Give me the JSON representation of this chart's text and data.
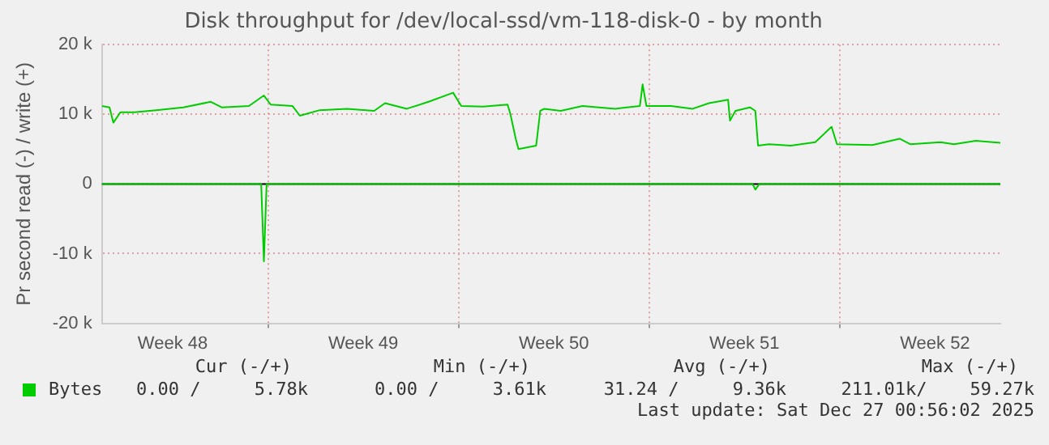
{
  "chart_data": {
    "type": "line",
    "title": "Disk throughput for /dev/local-ssd/vm-118-disk-0 - by month",
    "ylabel": "Pr second read (-) / write (+)",
    "xlim": [
      "2025-11-24T21:36",
      "2025-12-27T21:36"
    ],
    "xticks": [
      {
        "value": "2025-11-27T12:00",
        "label": "Week 48"
      },
      {
        "value": "2025-12-01T00:00",
        "label": null
      },
      {
        "value": "2025-12-04T12:00",
        "label": "Week 49"
      },
      {
        "value": "2025-12-08T00:00",
        "label": null
      },
      {
        "value": "2025-12-11T12:00",
        "label": "Week 50"
      },
      {
        "value": "2025-12-15T00:00",
        "label": null
      },
      {
        "value": "2025-12-18T12:00",
        "label": "Week 51"
      },
      {
        "value": "2025-12-22T00:00",
        "label": null
      },
      {
        "value": "2025-12-25T12:00",
        "label": "Week 52"
      }
    ],
    "ylim": [
      -20000,
      20000
    ],
    "yticks": [
      {
        "value": -20000,
        "label": "-20 k"
      },
      {
        "value": -10000,
        "label": "-10 k"
      },
      0,
      {
        "value": 10000,
        "label": "10 k"
      },
      {
        "value": 20000,
        "label": "20 k"
      }
    ],
    "grid": true,
    "legend": "bottom",
    "marker": "none",
    "line_style": "solid",
    "ref_lines": [
      {
        "axis": "y",
        "value": 0,
        "label": null,
        "color": "#000000"
      }
    ],
    "series": [
      {
        "name": "Bytes",
        "color": "#00cc00",
        "x": [
          "2025-11-24T21:36",
          "2025-11-25T04:19",
          "2025-11-25T07:41",
          "2025-11-25T13:55",
          "2025-11-26T02:10",
          "2025-11-26T21:22",
          "2025-11-27T21:22",
          "2025-11-28T21:36",
          "2025-11-29T07:12",
          "2025-11-30T07:12",
          "2025-11-30T20:24",
          "2025-12-01T02:24",
          "2025-12-01T21:36",
          "2025-12-02T04:05",
          "2025-12-02T21:36",
          "2025-12-03T21:36",
          "2025-12-04T21:36",
          "2025-12-05T07:12",
          "2025-12-06T02:24",
          "2025-12-06T21:36",
          "2025-12-07T19:12",
          "2025-12-08T02:24",
          "2025-12-08T21:36",
          "2025-12-09T19:12",
          "2025-12-09T21:36",
          "2025-12-10T02:24",
          "2025-12-10T04:48",
          "2025-12-10T20:24",
          "2025-12-11T00:00",
          "2025-12-11T03:36",
          "2025-12-11T18:00",
          "2025-12-12T13:12",
          "2025-12-13T18:14",
          "2025-12-14T15:50",
          "2025-12-14T18:14",
          "2025-12-14T21:36",
          "2025-12-15T19:12",
          "2025-12-16T14:24",
          "2025-12-17T04:48",
          "2025-12-17T21:36",
          "2025-12-17T23:17",
          "2025-12-18T04:05",
          "2025-12-18T16:48",
          "2025-12-18T21:36",
          "2025-12-19T00:00",
          "2025-12-19T09:36",
          "2025-12-20T04:48",
          "2025-12-21T02:24",
          "2025-12-21T16:48",
          "2025-12-21T21:36",
          "2025-12-23T04:48",
          "2025-12-24T04:48",
          "2025-12-24T14:24",
          "2025-12-25T16:48",
          "2025-12-26T04:48",
          "2025-12-27T00:00",
          "2025-12-27T21:36"
        ],
        "values": [
          11200,
          11000,
          8800,
          10300,
          10300,
          10600,
          11000,
          11800,
          11000,
          11200,
          12700,
          11400,
          11200,
          9800,
          10600,
          10800,
          10500,
          11600,
          10800,
          11800,
          13100,
          11200,
          11100,
          11400,
          10100,
          6500,
          5000,
          5500,
          10500,
          10800,
          10500,
          11200,
          10800,
          11200,
          14300,
          11200,
          11200,
          10800,
          11600,
          12100,
          9100,
          10500,
          11000,
          10500,
          5500,
          5700,
          5500,
          6000,
          8200,
          5700,
          5600,
          6500,
          5700,
          6000,
          5700,
          6200,
          5900
        ]
      },
      {
        "color": "#00cc00",
        "x": [
          "2025-11-24T21:36",
          "2025-11-30T18:00",
          "2025-11-30T20:24",
          "2025-11-30T22:48",
          "2025-12-18T19:12",
          "2025-12-18T21:36",
          "2025-12-19T01:12",
          "2025-12-27T21:36"
        ],
        "values": [
          0,
          0,
          -11100,
          0,
          0,
          -800,
          0,
          0
        ]
      }
    ],
    "annotations": [
      "Cur (-/+)",
      "Min (-/+)",
      "Avg (-/+)",
      "Max (-/+)",
      "0.00 /     5.78k",
      "0.00 /     3.61k",
      "31.24 /     9.36k",
      "211.01k/    59.27k",
      "Last update: Sat Dec 27 00:56:02 2025"
    ]
  }
}
